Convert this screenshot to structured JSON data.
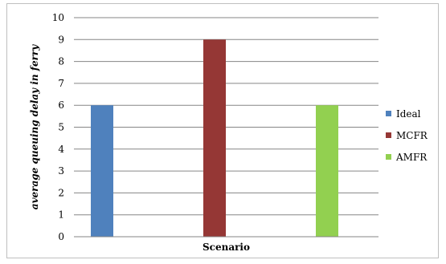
{
  "chart_data": {
    "type": "bar",
    "categories": [
      "Scenario"
    ],
    "series": [
      {
        "name": "Ideal",
        "values": [
          6
        ],
        "color": "#4f81bd"
      },
      {
        "name": "MCFR",
        "values": [
          9
        ],
        "color": "#953735"
      },
      {
        "name": "AMFR",
        "values": [
          6
        ],
        "color": "#92d050"
      }
    ],
    "xlabel": "Scenario",
    "ylabel": "average queuing delay in ferry",
    "ylim": [
      0,
      10
    ],
    "yticks": [
      0,
      1,
      2,
      3,
      4,
      5,
      6,
      7,
      8,
      9,
      10
    ],
    "grid": true,
    "legend": "right"
  }
}
